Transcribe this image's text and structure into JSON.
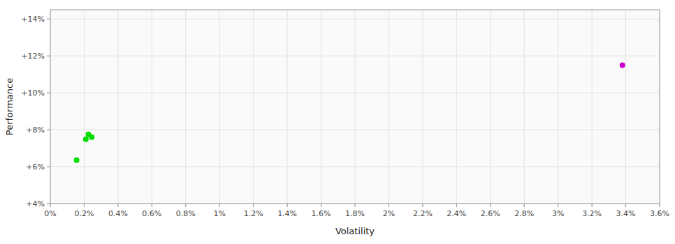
{
  "chart_data": {
    "type": "scatter",
    "xlabel": "Volatility",
    "ylabel": "Performance",
    "xlim": [
      0.0,
      0.036
    ],
    "ylim": [
      0.04,
      0.145
    ],
    "xticks": [
      {
        "value": 0.0,
        "label": "0%"
      },
      {
        "value": 0.002,
        "label": "0.2%"
      },
      {
        "value": 0.004,
        "label": "0.4%"
      },
      {
        "value": 0.006,
        "label": "0.6%"
      },
      {
        "value": 0.008,
        "label": "0.8%"
      },
      {
        "value": 0.01,
        "label": "1%"
      },
      {
        "value": 0.012,
        "label": "1.2%"
      },
      {
        "value": 0.014,
        "label": "1.4%"
      },
      {
        "value": 0.016,
        "label": "1.6%"
      },
      {
        "value": 0.018,
        "label": "1.8%"
      },
      {
        "value": 0.02,
        "label": "2%"
      },
      {
        "value": 0.022,
        "label": "2.2%"
      },
      {
        "value": 0.024,
        "label": "2.4%"
      },
      {
        "value": 0.026,
        "label": "2.6%"
      },
      {
        "value": 0.028,
        "label": "2.8%"
      },
      {
        "value": 0.03,
        "label": "3%"
      },
      {
        "value": 0.032,
        "label": "3.2%"
      },
      {
        "value": 0.034,
        "label": "3.4%"
      },
      {
        "value": 0.036,
        "label": "3.6%"
      }
    ],
    "yticks": [
      {
        "value": 0.04,
        "label": "+4%"
      },
      {
        "value": 0.06,
        "label": "+6%"
      },
      {
        "value": 0.08,
        "label": "+8%"
      },
      {
        "value": 0.1,
        "label": "+10%"
      },
      {
        "value": 0.12,
        "label": "+12%"
      },
      {
        "value": 0.14,
        "label": "+14%"
      }
    ],
    "grid": true,
    "series": [
      {
        "color": "#00dd00",
        "x": [
          0.00225,
          0.00245,
          0.0021,
          0.00155
        ],
        "values": [
          0.0775,
          0.076,
          0.0748,
          0.0635
        ]
      },
      {
        "color": "#cc00cc",
        "x": [
          0.0338
        ],
        "values": [
          0.115
        ]
      }
    ]
  }
}
